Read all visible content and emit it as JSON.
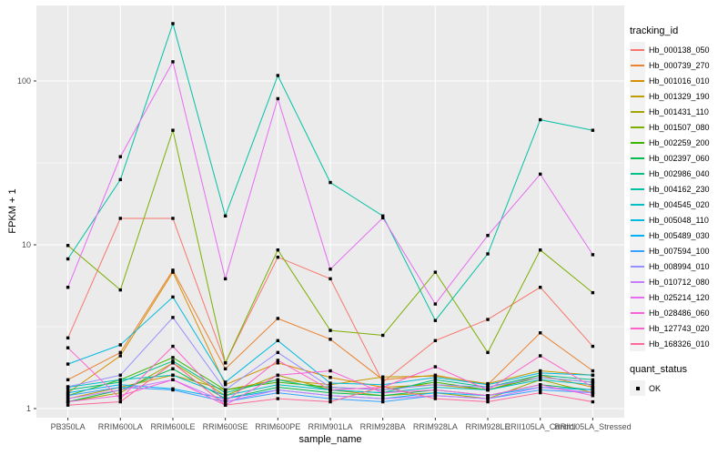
{
  "chart_data": {
    "type": "line",
    "title": "",
    "xlabel": "sample_name",
    "ylabel": "FPKM + 1",
    "y_scale": "log10",
    "ylim": [
      1,
      260
    ],
    "y_major_ticks": [
      1,
      10,
      100
    ],
    "y_minor_ticks": [
      3.1623,
      31.623
    ],
    "grid": "on",
    "legend_position": "right",
    "legend_tracking_title": "tracking_id",
    "legend_quant_title": "quant_status",
    "quant_status_label": "OK",
    "point_color": "#000000",
    "panel_background": "#EBEBEB",
    "grid_color": "#FFFFFF",
    "tick_label_color": "#4D4D4D",
    "categories": [
      "PB350LA",
      "RRIM600LA",
      "RRIM600LE",
      "RRIM600SE",
      "RRIM600PE",
      "RRIM901LA",
      "RRIM928BA",
      "RRIM928LA",
      "RRIM928LE",
      "RRII105LA_Control",
      "RRII105LA_Stressed"
    ],
    "series": [
      {
        "name": "Hb_000138_050",
        "color": "#F8766D",
        "values": [
          2.7,
          14.5,
          14.5,
          1.9,
          8.4,
          6.2,
          1.45,
          2.6,
          3.5,
          5.5,
          2.4
        ]
      },
      {
        "name": "Hb_000739_270",
        "color": "#EA8331",
        "values": [
          1.5,
          2.2,
          7.0,
          1.75,
          3.55,
          2.65,
          1.5,
          1.6,
          1.4,
          2.9,
          1.7
        ]
      },
      {
        "name": "Hb_001016_010",
        "color": "#D89000",
        "values": [
          1.25,
          2.1,
          6.8,
          1.4,
          1.9,
          1.55,
          1.35,
          1.4,
          1.3,
          1.6,
          1.35
        ]
      },
      {
        "name": "Hb_001329_190",
        "color": "#C09B00",
        "values": [
          1.15,
          1.35,
          1.6,
          1.3,
          1.5,
          1.4,
          1.56,
          1.58,
          1.42,
          1.7,
          1.6
        ]
      },
      {
        "name": "Hb_001431_110",
        "color": "#A3A500",
        "values": [
          1.1,
          1.25,
          1.9,
          1.2,
          1.6,
          1.3,
          1.2,
          1.25,
          1.15,
          1.5,
          1.25
        ]
      },
      {
        "name": "Hb_001507_080",
        "color": "#7CAE00",
        "values": [
          9.9,
          5.3,
          50,
          1.9,
          9.3,
          3.0,
          2.8,
          6.8,
          2.2,
          9.3,
          5.1
        ]
      },
      {
        "name": "Hb_002259_200",
        "color": "#39B600",
        "values": [
          1.2,
          1.5,
          2.05,
          1.3,
          1.45,
          1.35,
          1.3,
          1.45,
          1.3,
          1.55,
          1.45
        ]
      },
      {
        "name": "Hb_002397_060",
        "color": "#00BB4E",
        "values": [
          1.1,
          1.3,
          1.75,
          1.15,
          1.35,
          1.25,
          1.2,
          1.3,
          1.2,
          1.4,
          1.3
        ]
      },
      {
        "name": "Hb_002986_040",
        "color": "#00C087",
        "values": [
          1.3,
          1.45,
          1.95,
          1.25,
          1.5,
          1.3,
          1.25,
          1.5,
          1.35,
          1.6,
          1.5
        ]
      },
      {
        "name": "Hb_004162_230",
        "color": "#00C1A3",
        "values": [
          8.2,
          25,
          224,
          15,
          108,
          24,
          15,
          3.45,
          8.8,
          58,
          50
        ]
      },
      {
        "name": "Hb_004545_020",
        "color": "#00BFC4",
        "values": [
          1.35,
          1.5,
          1.6,
          1.2,
          1.4,
          1.3,
          1.25,
          1.35,
          1.3,
          1.5,
          1.4
        ]
      },
      {
        "name": "Hb_005048_110",
        "color": "#00BAE0",
        "values": [
          1.87,
          2.45,
          4.8,
          1.45,
          2.6,
          1.43,
          1.4,
          1.55,
          1.4,
          1.65,
          1.6
        ]
      },
      {
        "name": "Hb_005489_030",
        "color": "#00B0F6",
        "values": [
          1.25,
          1.4,
          1.32,
          1.15,
          1.3,
          1.2,
          1.15,
          1.25,
          1.2,
          1.35,
          1.3
        ]
      },
      {
        "name": "Hb_007594_100",
        "color": "#35A2FF",
        "values": [
          1.2,
          1.35,
          1.3,
          1.1,
          1.25,
          1.15,
          1.1,
          1.2,
          1.15,
          1.3,
          1.25
        ]
      },
      {
        "name": "Hb_008994_010",
        "color": "#9590FF",
        "values": [
          1.36,
          1.6,
          3.6,
          1.3,
          2.2,
          1.35,
          1.3,
          1.4,
          1.35,
          1.55,
          1.45
        ]
      },
      {
        "name": "Hb_010712_080",
        "color": "#C77CFF",
        "values": [
          1.15,
          1.3,
          1.5,
          1.1,
          1.3,
          1.2,
          1.15,
          1.2,
          1.15,
          1.35,
          1.25
        ]
      },
      {
        "name": "Hb_025214_120",
        "color": "#E76BF3",
        "values": [
          5.5,
          34.5,
          131,
          6.2,
          78,
          7.1,
          14.6,
          4.35,
          11.4,
          27,
          8.7
        ]
      },
      {
        "name": "Hb_028486_060",
        "color": "#FA62DB",
        "values": [
          1.1,
          1.2,
          1.5,
          1.05,
          1.6,
          1.7,
          1.25,
          1.3,
          1.2,
          1.4,
          1.2
        ]
      },
      {
        "name": "Hb_127743_020",
        "color": "#FF61CC",
        "values": [
          2.35,
          1.15,
          2.4,
          1.1,
          1.97,
          1.3,
          1.35,
          1.8,
          1.3,
          2.1,
          1.35
        ]
      },
      {
        "name": "Hb_168326_010",
        "color": "#FF6A98",
        "values": [
          1.05,
          1.1,
          1.9,
          1.05,
          1.15,
          1.1,
          1.36,
          1.15,
          1.1,
          1.25,
          1.1
        ]
      }
    ]
  }
}
